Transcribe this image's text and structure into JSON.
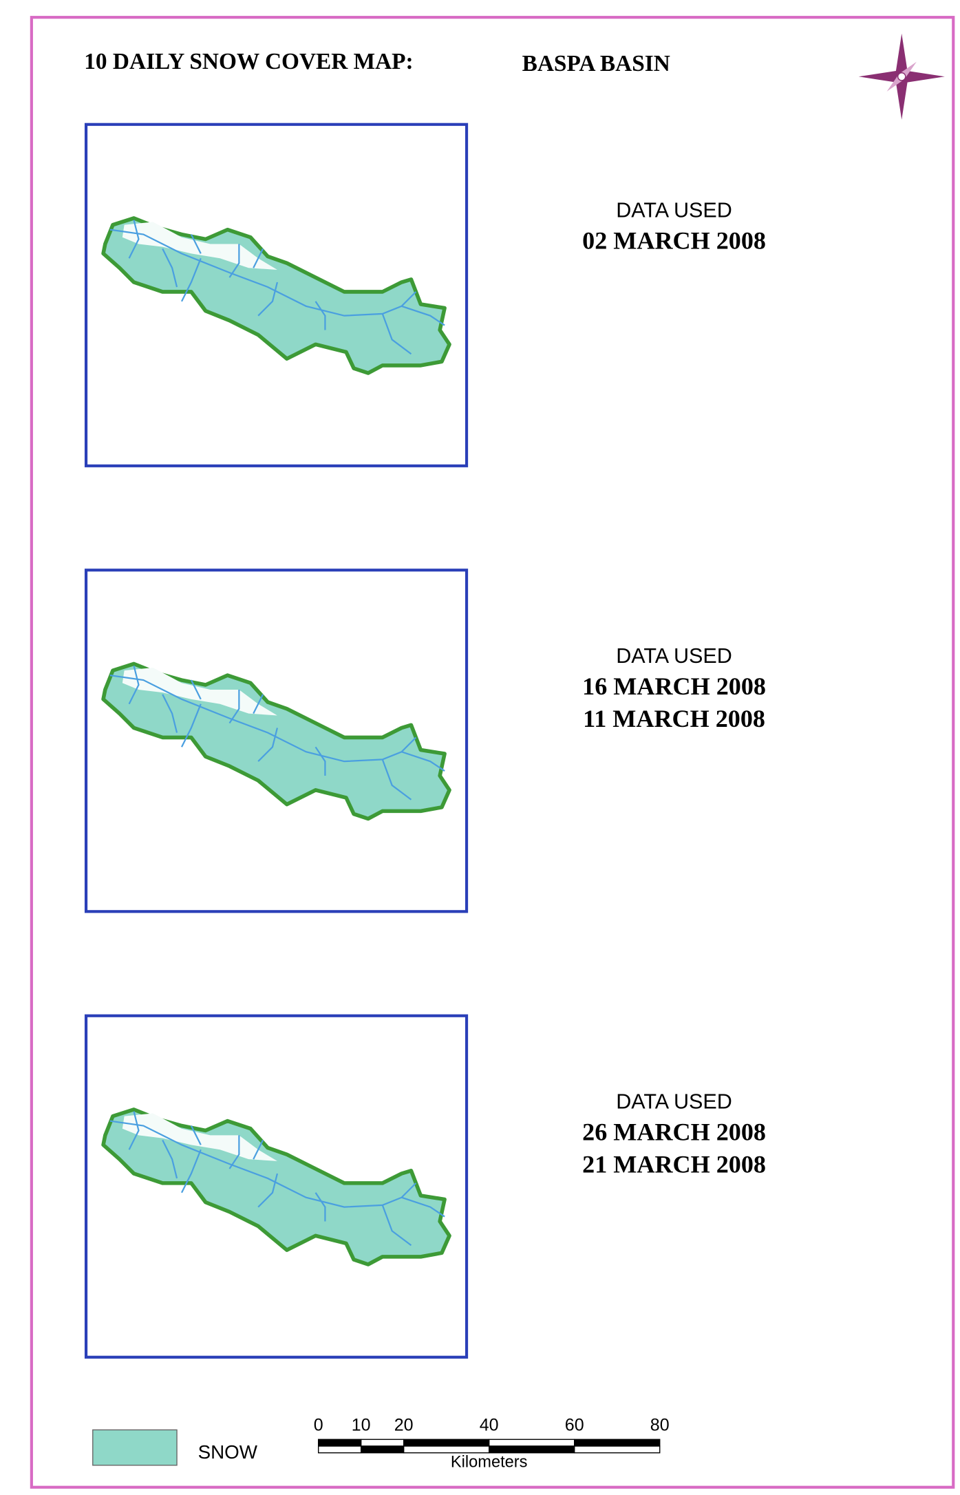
{
  "header": {
    "title": "10 DAILY SNOW COVER MAP:",
    "basin": "BASPA BASIN"
  },
  "panels": [
    {
      "label": "DATA USED",
      "dates": [
        "02 MARCH 2008"
      ]
    },
    {
      "label": "DATA USED",
      "dates": [
        "16 MARCH 2008",
        "11 MARCH 2008"
      ]
    },
    {
      "label": "DATA USED",
      "dates": [
        "26 MARCH 2008",
        "21 MARCH 2008"
      ]
    }
  ],
  "legend": {
    "items": [
      {
        "label": "SNOW",
        "color": "#8fd8c8"
      }
    ]
  },
  "scale_bar": {
    "ticks": [
      0,
      10,
      20,
      40,
      60,
      80
    ],
    "unit": "Kilometers"
  }
}
